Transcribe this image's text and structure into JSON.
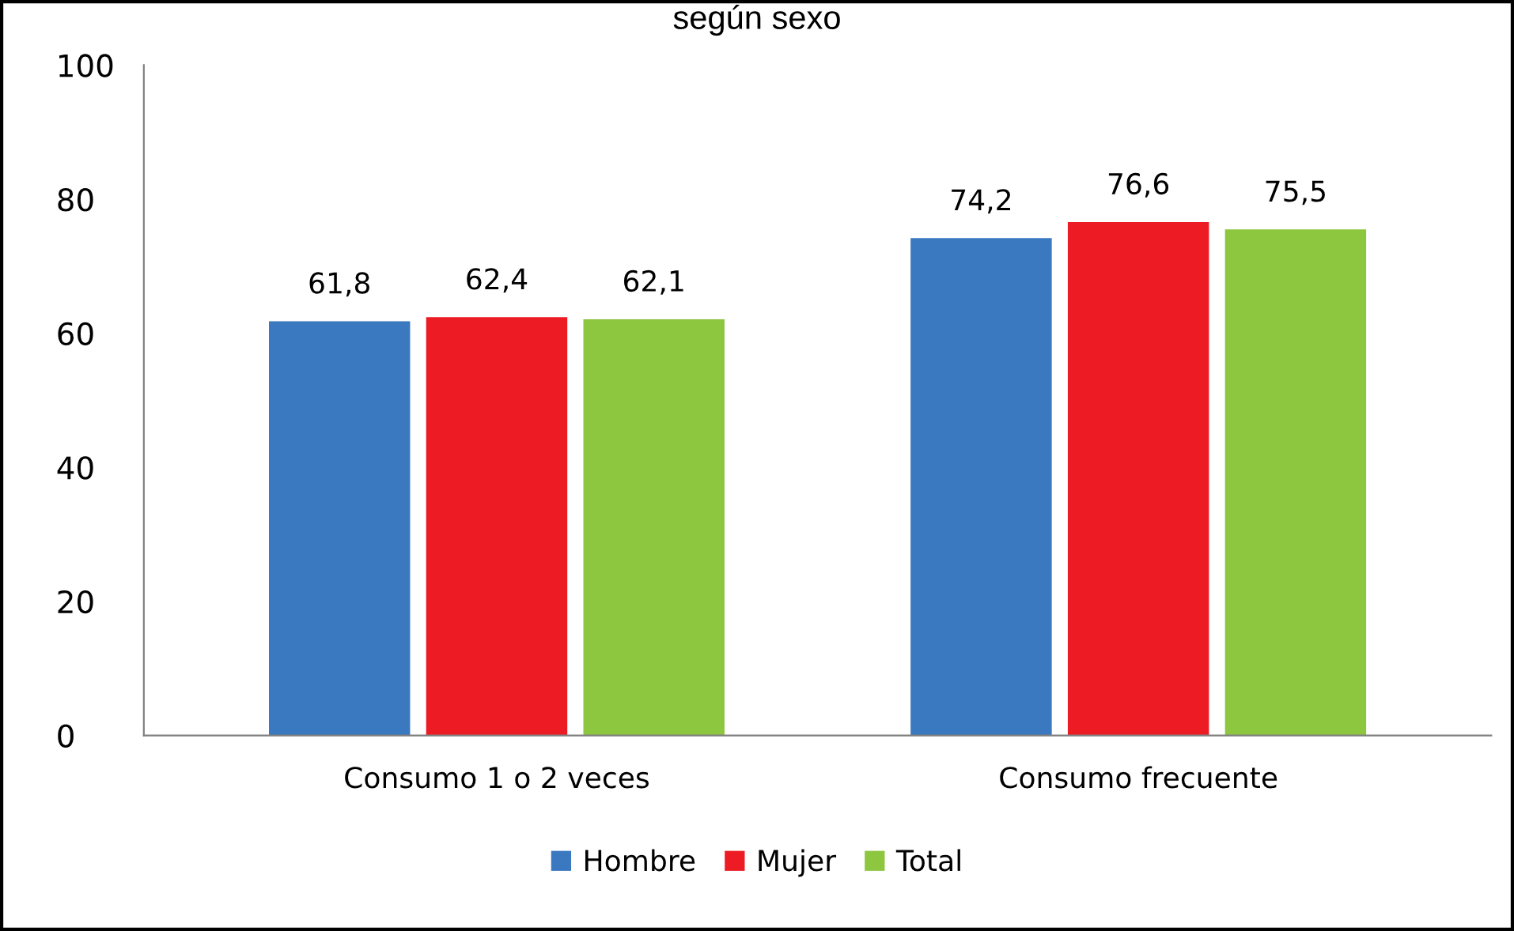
{
  "chart_data": {
    "type": "bar",
    "title": "según sexo",
    "categories": [
      "Consumo 1 o 2 veces",
      "Consumo frecuente"
    ],
    "series": [
      {
        "name": "Hombre",
        "color": "#3a78c0",
        "values": [
          61.8,
          74.2
        ],
        "value_labels": [
          "61,8",
          "74,2"
        ]
      },
      {
        "name": "Mujer",
        "color": "#ed1c24",
        "values": [
          62.4,
          76.6
        ],
        "value_labels": [
          "62,4",
          "76,6"
        ]
      },
      {
        "name": "Total",
        "color": "#8dc63f",
        "values": [
          62.1,
          75.5
        ],
        "value_labels": [
          "62,1",
          "75,5"
        ]
      }
    ],
    "ylim": [
      0,
      100
    ],
    "yticks": [
      0,
      20,
      40,
      60,
      80,
      100
    ],
    "grid": false,
    "legend": "bottom"
  }
}
